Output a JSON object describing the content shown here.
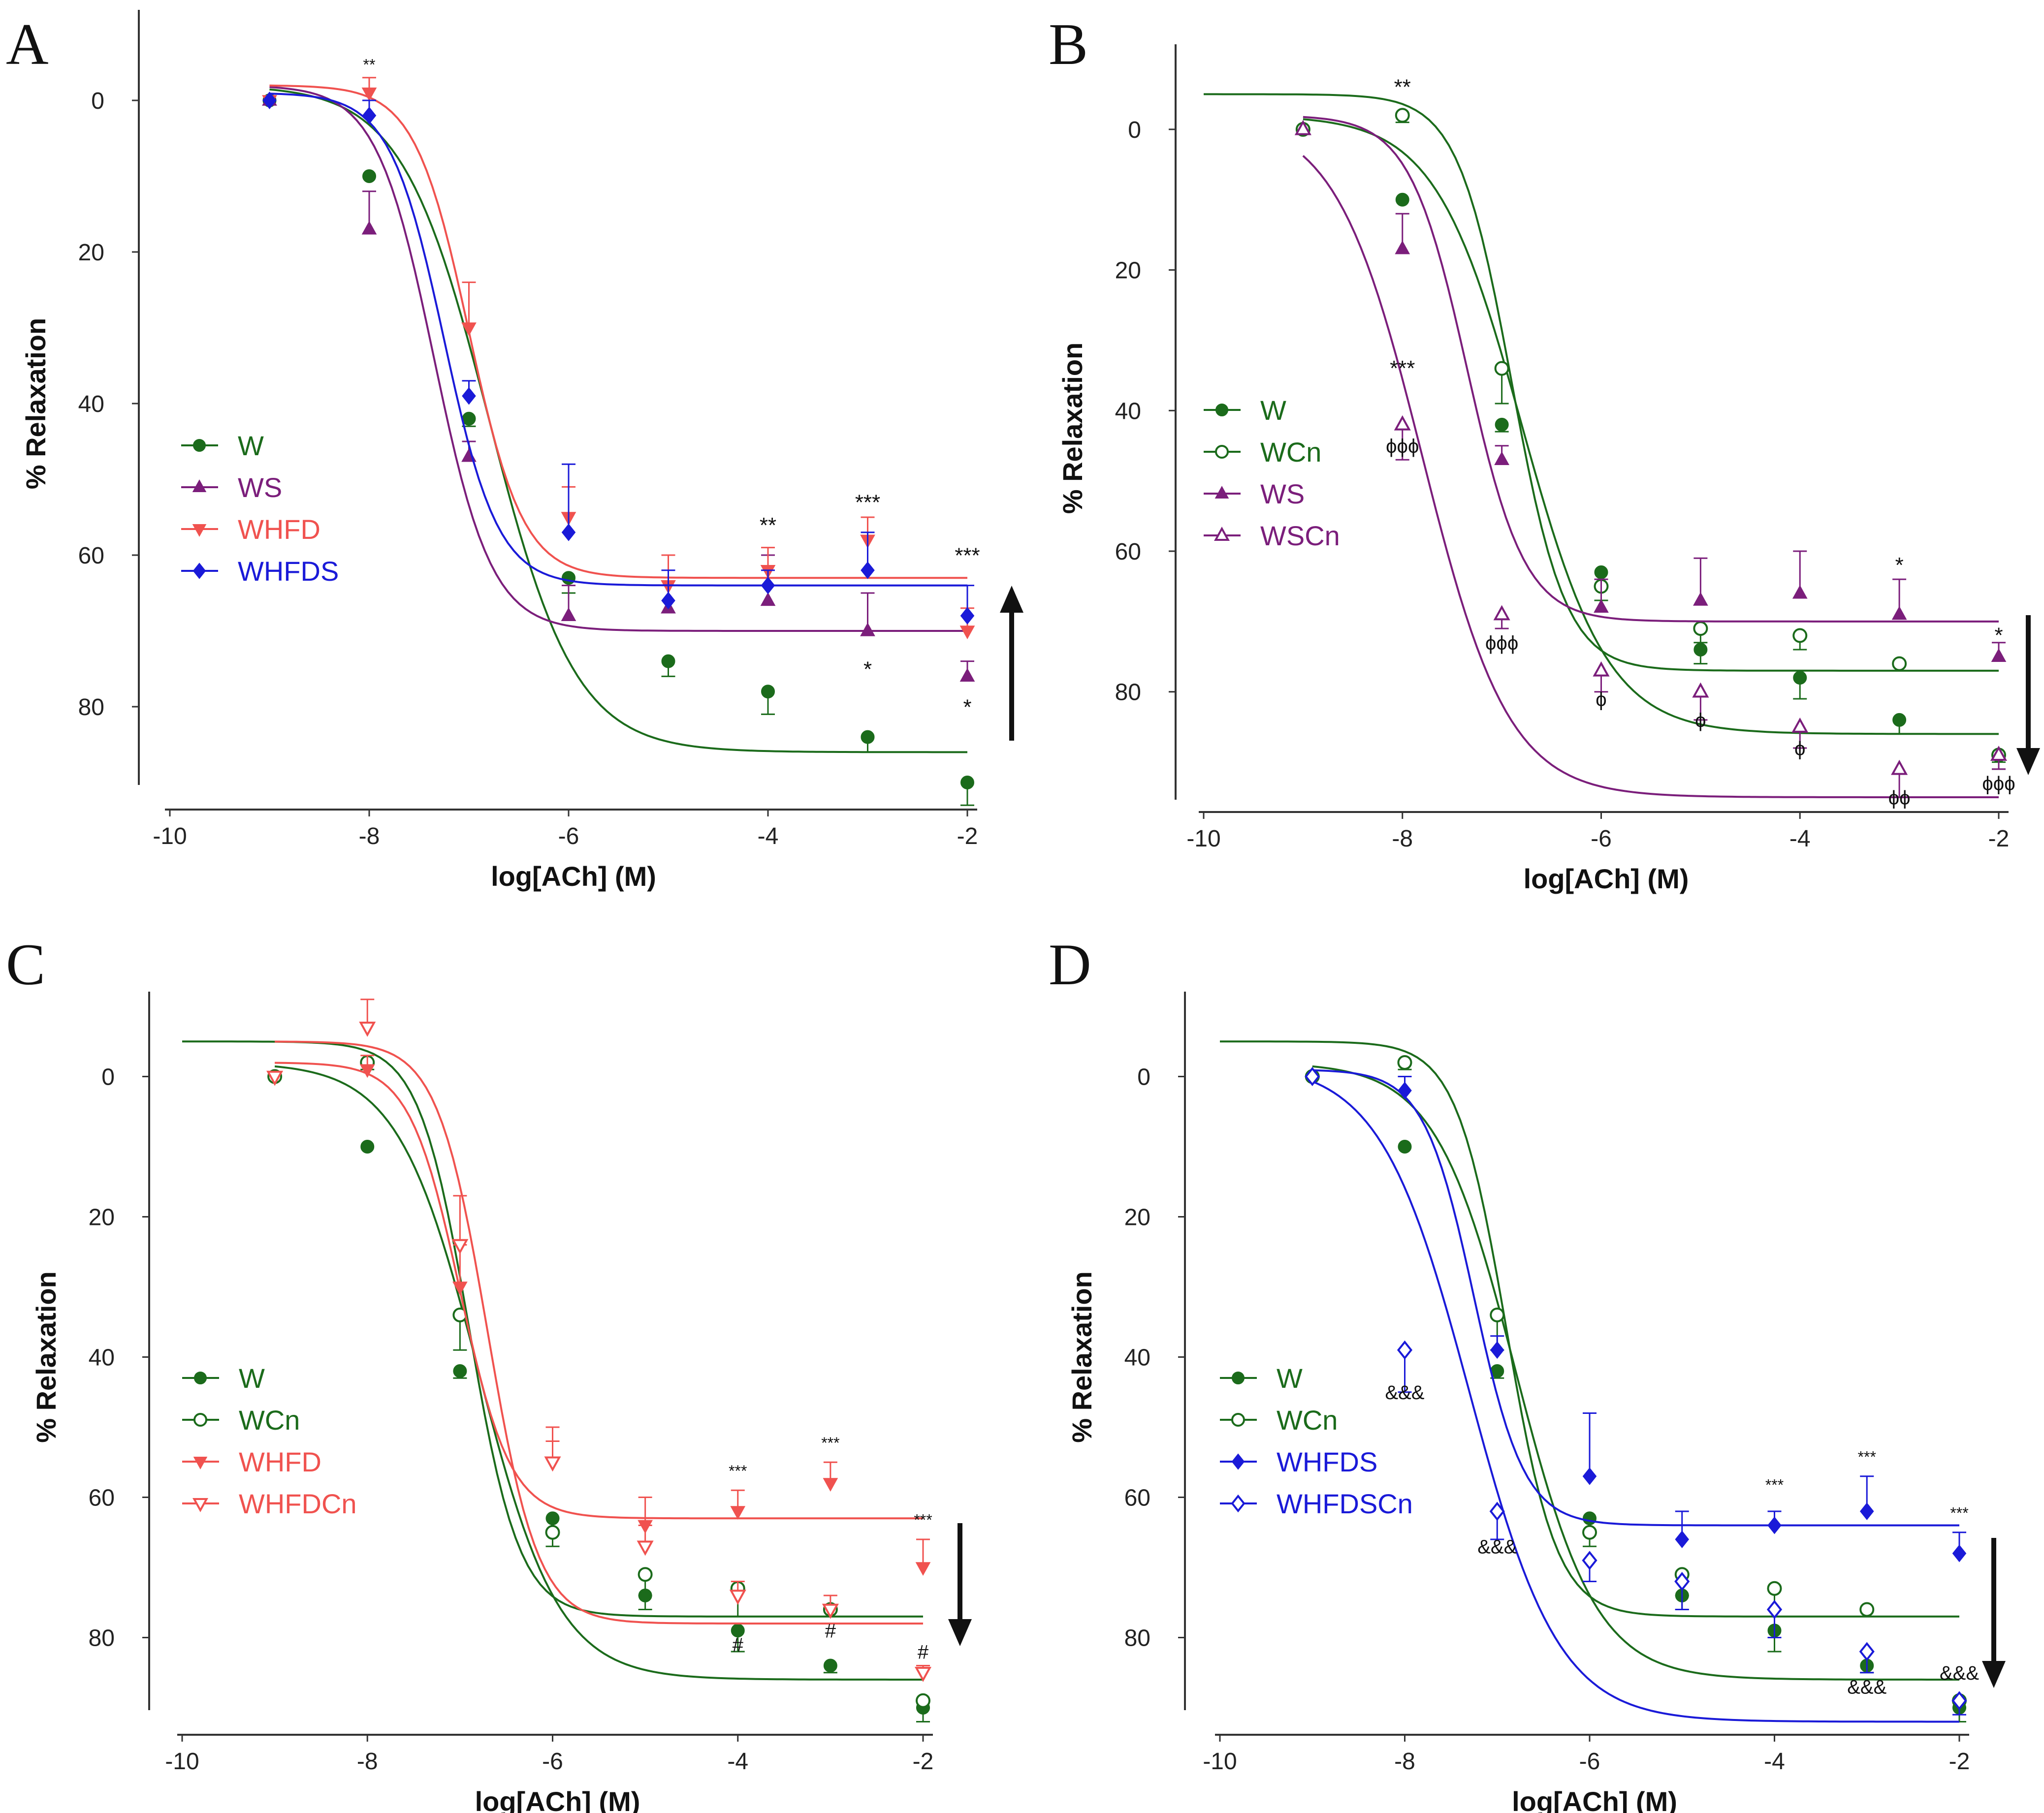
{
  "chart_data": [
    {
      "panel": "A",
      "type": "scatter",
      "xlabel": "log[ACh] (M)",
      "ylabel": "% Relaxation",
      "xlim": [
        -10,
        -2
      ],
      "ylim": [
        -10,
        90
      ],
      "xticks": [
        -10,
        -8,
        -6,
        -4,
        -2
      ],
      "yticks": [
        0,
        20,
        40,
        60,
        80
      ],
      "legend": "center-left",
      "series": [
        {
          "name": "W",
          "color": "#1b6b1b",
          "marker": "circle",
          "filled": true,
          "x": [
            -9,
            -8,
            -7,
            -6,
            -5,
            -4,
            -3,
            -2
          ],
          "y": [
            0,
            10,
            42,
            63,
            74,
            78,
            84,
            90
          ],
          "err": [
            0,
            0,
            1,
            2,
            2,
            3,
            2,
            3
          ],
          "fit": {
            "top": -2,
            "bottom": 86,
            "ec50": -6.8,
            "hill": 0.5,
            "from": -9,
            "to": -2
          }
        },
        {
          "name": "WS",
          "color": "#7b1e7b",
          "marker": "triangle-up",
          "filled": true,
          "x": [
            -9,
            -8,
            -7,
            -6,
            -5,
            -4,
            -3,
            -2
          ],
          "y": [
            0,
            17,
            47,
            68,
            67,
            66,
            70,
            76
          ],
          "err": [
            0,
            5,
            2,
            4,
            3,
            6,
            5,
            2
          ],
          "fit": {
            "top": -2,
            "bottom": 70,
            "ec50": -7.35,
            "hill": 0.75,
            "from": -9,
            "to": -2
          }
        },
        {
          "name": "WHFD",
          "color": "#f0524f",
          "marker": "triangle-down",
          "filled": true,
          "x": [
            -9,
            -8,
            -7,
            -6,
            -5,
            -4,
            -3,
            -2
          ],
          "y": [
            0,
            -1,
            30,
            55,
            64,
            62,
            58,
            70
          ],
          "err": [
            0,
            2,
            6,
            4,
            4,
            3,
            3,
            3
          ],
          "fit": {
            "top": -2,
            "bottom": 63,
            "ec50": -7.0,
            "hill": 0.8,
            "from": -9,
            "to": -2
          }
        },
        {
          "name": "WHFDS",
          "color": "#1a1ad8",
          "marker": "diamond",
          "filled": true,
          "x": [
            -9,
            -8,
            -7,
            -6,
            -5,
            -4,
            -3,
            -2
          ],
          "y": [
            0,
            2,
            39,
            57,
            66,
            64,
            62,
            68
          ],
          "err": [
            0,
            2,
            2,
            9,
            4,
            2,
            5,
            4
          ],
          "fit": {
            "top": -1,
            "bottom": 64,
            "ec50": -7.25,
            "hill": 0.8,
            "from": -9,
            "to": -2
          }
        }
      ],
      "annotations": [
        {
          "text": "**",
          "x": -8,
          "y": -4,
          "size": 32
        },
        {
          "text": "**",
          "x": -4,
          "y": 57,
          "size": 44
        },
        {
          "text": "***",
          "x": -3,
          "y": 54,
          "size": 44
        },
        {
          "text": "*",
          "x": -3,
          "y": 76,
          "size": 44
        },
        {
          "text": "***",
          "x": -2,
          "y": 61,
          "size": 44
        },
        {
          "text": "*",
          "x": -2,
          "y": 81,
          "size": 44
        }
      ],
      "arrow": "up"
    },
    {
      "panel": "B",
      "type": "scatter",
      "xlabel": "log[ACh] (M)",
      "ylabel": "% Relaxation",
      "xlim": [
        -10,
        -2
      ],
      "ylim": [
        -10,
        95
      ],
      "xticks": [
        -10,
        -8,
        -6,
        -4,
        -2
      ],
      "yticks": [
        0,
        20,
        40,
        60,
        80
      ],
      "legend": "center-left",
      "series": [
        {
          "name": "W",
          "color": "#1b6b1b",
          "marker": "circle",
          "filled": true,
          "x": [
            -9,
            -8,
            -7,
            -6,
            -5,
            -4,
            -3,
            -2
          ],
          "y": [
            0,
            10,
            42,
            63,
            74,
            78,
            84,
            89
          ],
          "err": [
            0,
            0,
            1,
            2,
            2,
            3,
            2,
            2
          ],
          "fit": {
            "top": -2,
            "bottom": 86,
            "ec50": -6.8,
            "hill": 0.5,
            "from": -9,
            "to": -2
          }
        },
        {
          "name": "WCn",
          "color": "#1b6b1b",
          "marker": "circle",
          "filled": false,
          "x": [
            -9,
            -8,
            -7,
            -6,
            -5,
            -4,
            -3,
            -2
          ],
          "y": [
            0,
            -2,
            34,
            65,
            71,
            72,
            76,
            89
          ],
          "err": [
            0,
            1,
            5,
            2,
            2,
            2,
            1,
            1
          ],
          "fit": {
            "top": -5,
            "bottom": 77,
            "ec50": -6.9,
            "hill": 0.8,
            "from": -10,
            "to": -2
          }
        },
        {
          "name": "WS",
          "color": "#7b1e7b",
          "marker": "triangle-up",
          "filled": true,
          "x": [
            -9,
            -8,
            -7,
            -6,
            -5,
            -4,
            -3,
            -2
          ],
          "y": [
            0,
            17,
            47,
            68,
            67,
            66,
            69,
            75
          ],
          "err": [
            0,
            5,
            2,
            4,
            6,
            6,
            5,
            2
          ],
          "fit": {
            "top": -2,
            "bottom": 70,
            "ec50": -7.35,
            "hill": 0.75,
            "from": -9,
            "to": -2
          }
        },
        {
          "name": "WSCn",
          "color": "#7b1e7b",
          "marker": "triangle-up",
          "filled": false,
          "x": [
            -9,
            -8,
            -7,
            -6,
            -5,
            -4,
            -3,
            -2
          ],
          "y": [
            0,
            42,
            69,
            77,
            80,
            85,
            91,
            89
          ],
          "err": [
            0,
            5,
            2,
            3,
            4,
            3,
            4,
            2
          ],
          "fit": {
            "top": -2,
            "bottom": 95,
            "ec50": -7.8,
            "hill": 0.5,
            "from": -9,
            "to": -2
          }
        }
      ],
      "annotations": [
        {
          "text": "**",
          "x": -8,
          "y": -5,
          "size": 44
        },
        {
          "text": "***",
          "x": -8,
          "y": 35,
          "size": 44
        },
        {
          "text": "ϕϕϕ",
          "x": -8,
          "y": 46,
          "size": 40
        },
        {
          "text": "ϕϕϕ",
          "x": -7,
          "y": 74,
          "size": 40
        },
        {
          "text": "ϕ",
          "x": -6,
          "y": 82,
          "size": 40
        },
        {
          "text": "ϕ",
          "x": -5,
          "y": 85,
          "size": 40
        },
        {
          "text": "ϕ",
          "x": -4,
          "y": 89,
          "size": 40
        },
        {
          "text": "*",
          "x": -3,
          "y": 63,
          "size": 44
        },
        {
          "text": "ϕϕ",
          "x": -3,
          "y": 96,
          "size": 40
        },
        {
          "text": "*",
          "x": -2,
          "y": 73,
          "size": 44
        },
        {
          "text": "ϕϕϕ",
          "x": -2,
          "y": 94,
          "size": 40
        }
      ],
      "arrow": "down"
    },
    {
      "panel": "C",
      "type": "scatter",
      "xlabel": "log[ACh] (M)",
      "ylabel": "% Relaxation",
      "xlim": [
        -10,
        -2
      ],
      "ylim": [
        -10,
        90
      ],
      "xticks": [
        -10,
        -8,
        -6,
        -4,
        -2
      ],
      "yticks": [
        0,
        20,
        40,
        60,
        80
      ],
      "legend": "bottom-left",
      "series": [
        {
          "name": "W",
          "color": "#1b6b1b",
          "marker": "circle",
          "filled": true,
          "x": [
            -9,
            -8,
            -7,
            -6,
            -5,
            -4,
            -3,
            -2
          ],
          "y": [
            0,
            10,
            42,
            63,
            74,
            79,
            84,
            90
          ],
          "err": [
            0,
            0,
            1,
            2,
            2,
            3,
            1,
            2
          ],
          "fit": {
            "top": -2,
            "bottom": 86,
            "ec50": -6.8,
            "hill": 0.5,
            "from": -9,
            "to": -2
          }
        },
        {
          "name": "WCn",
          "color": "#1b6b1b",
          "marker": "circle",
          "filled": false,
          "x": [
            -9,
            -8,
            -7,
            -6,
            -5,
            -4,
            -3,
            -2
          ],
          "y": [
            0,
            -2,
            34,
            65,
            71,
            73,
            76,
            89
          ],
          "err": [
            0,
            1,
            5,
            2,
            3,
            4,
            1,
            1
          ],
          "fit": {
            "top": -5,
            "bottom": 77,
            "ec50": -6.9,
            "hill": 0.8,
            "from": -10,
            "to": -2
          }
        },
        {
          "name": "WHFD",
          "color": "#f0524f",
          "marker": "triangle-down",
          "filled": true,
          "x": [
            -9,
            -8,
            -7,
            -6,
            -5,
            -4,
            -3,
            -2
          ],
          "y": [
            0,
            -1,
            30,
            55,
            64,
            62,
            58,
            70
          ],
          "err": [
            0,
            2,
            6,
            5,
            4,
            3,
            3,
            4
          ],
          "fit": {
            "top": -2,
            "bottom": 63,
            "ec50": -7.0,
            "hill": 0.8,
            "from": -9,
            "to": -2
          }
        },
        {
          "name": "WHFDCn",
          "color": "#f0524f",
          "marker": "triangle-down",
          "filled": false,
          "x": [
            -9,
            -8,
            -7,
            -6,
            -5,
            -4,
            -3,
            -2
          ],
          "y": [
            0,
            -7,
            24,
            55,
            67,
            74,
            76,
            85
          ],
          "err": [
            0,
            4,
            7,
            3,
            3,
            2,
            2,
            1
          ],
          "fit": {
            "top": -5,
            "bottom": 78,
            "ec50": -6.7,
            "hill": 0.8,
            "from": -9,
            "to": -2
          }
        }
      ],
      "annotations": [
        {
          "text": "***",
          "x": -4,
          "y": 57,
          "size": 32
        },
        {
          "text": "***",
          "x": -3,
          "y": 53,
          "size": 32
        },
        {
          "text": "***",
          "x": -2,
          "y": 64,
          "size": 32
        },
        {
          "text": "#",
          "x": -4,
          "y": 82,
          "size": 40
        },
        {
          "text": "#",
          "x": -3,
          "y": 80,
          "size": 40
        },
        {
          "text": "#",
          "x": -2,
          "y": 83,
          "size": 40
        }
      ],
      "arrow": "down"
    },
    {
      "panel": "D",
      "type": "scatter",
      "xlabel": "log[ACh] (M)",
      "ylabel": "% Relaxation",
      "xlim": [
        -10,
        -2
      ],
      "ylim": [
        -10,
        90
      ],
      "xticks": [
        -10,
        -8,
        -6,
        -4,
        -2
      ],
      "yticks": [
        0,
        20,
        40,
        60,
        80
      ],
      "legend": "bottom-left",
      "series": [
        {
          "name": "W",
          "color": "#1b6b1b",
          "marker": "circle",
          "filled": true,
          "x": [
            -9,
            -8,
            -7,
            -6,
            -5,
            -4,
            -3,
            -2
          ],
          "y": [
            0,
            10,
            42,
            63,
            74,
            79,
            84,
            90
          ],
          "err": [
            0,
            0,
            1,
            2,
            2,
            3,
            1,
            2
          ],
          "fit": {
            "top": -2,
            "bottom": 86,
            "ec50": -6.8,
            "hill": 0.5,
            "from": -9,
            "to": -2
          }
        },
        {
          "name": "WCn",
          "color": "#1b6b1b",
          "marker": "circle",
          "filled": false,
          "x": [
            -9,
            -8,
            -7,
            -6,
            -5,
            -4,
            -3,
            -2
          ],
          "y": [
            0,
            -2,
            34,
            65,
            71,
            73,
            76,
            89
          ],
          "err": [
            0,
            1,
            5,
            2,
            3,
            4,
            1,
            1
          ],
          "fit": {
            "top": -5,
            "bottom": 77,
            "ec50": -6.9,
            "hill": 0.8,
            "from": -10,
            "to": -2
          }
        },
        {
          "name": "WHFDS",
          "color": "#1a1ad8",
          "marker": "diamond",
          "filled": true,
          "x": [
            -9,
            -8,
            -7,
            -6,
            -5,
            -4,
            -3,
            -2
          ],
          "y": [
            0,
            2,
            39,
            57,
            66,
            64,
            62,
            68
          ],
          "err": [
            0,
            2,
            2,
            9,
            4,
            2,
            5,
            3
          ],
          "fit": {
            "top": -1,
            "bottom": 64,
            "ec50": -7.25,
            "hill": 0.8,
            "from": -9,
            "to": -2
          }
        },
        {
          "name": "WHFDSCn",
          "color": "#1a1ad8",
          "marker": "diamond",
          "filled": false,
          "x": [
            -9,
            -8,
            -7,
            -6,
            -5,
            -4,
            -3,
            -2
          ],
          "y": [
            0,
            39,
            62,
            69,
            72,
            76,
            82,
            89
          ],
          "err": [
            0,
            6,
            4,
            3,
            4,
            4,
            3,
            2
          ],
          "fit": {
            "top": -2,
            "bottom": 92,
            "ec50": -7.3,
            "hill": 0.45,
            "from": -9,
            "to": -2
          }
        }
      ],
      "annotations": [
        {
          "text": "&&&",
          "x": -8,
          "y": 46,
          "size": 40
        },
        {
          "text": "&&&",
          "x": -7,
          "y": 68,
          "size": 40
        },
        {
          "text": "***",
          "x": -4,
          "y": 59,
          "size": 32
        },
        {
          "text": "***",
          "x": -3,
          "y": 55,
          "size": 32
        },
        {
          "text": "***",
          "x": -2,
          "y": 63,
          "size": 32
        },
        {
          "text": "&&&",
          "x": -3,
          "y": 88,
          "size": 40
        },
        {
          "text": "&&&",
          "x": -2,
          "y": 86,
          "size": 40
        }
      ],
      "arrow": "down"
    }
  ]
}
